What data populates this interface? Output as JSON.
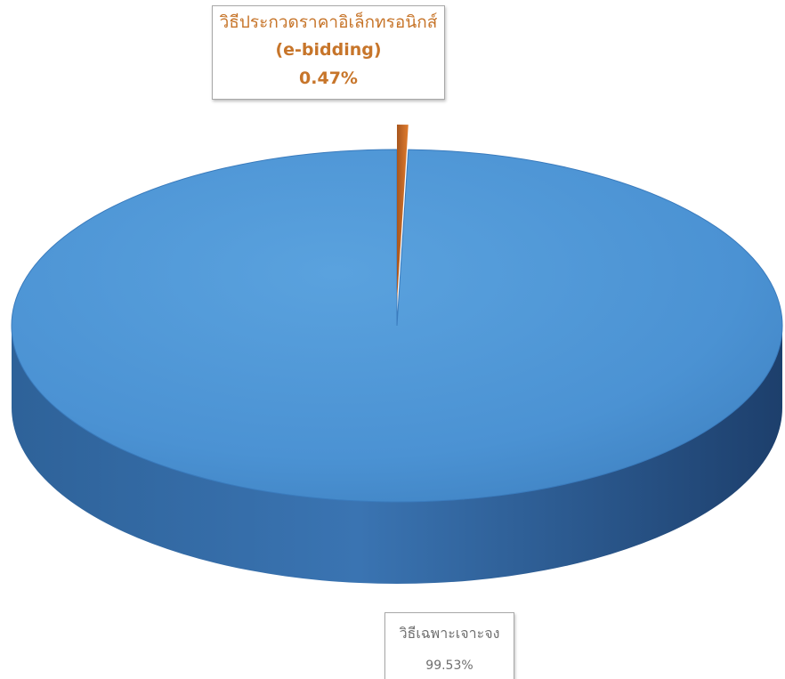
{
  "chart_data": {
    "type": "pie",
    "style": "3d",
    "slices": [
      {
        "label": "วิธีเฉพาะเจาะจง",
        "percent_label": "99.53%",
        "value": 99.53,
        "color": "#4a8fcf"
      },
      {
        "label_lines": [
          "วิธีประกวดราคาอิเล็กทรอนิกส์",
          "(e-bidding)"
        ],
        "percent_label": "0.47%",
        "value": 0.47,
        "color": "#d8742c"
      }
    ]
  }
}
